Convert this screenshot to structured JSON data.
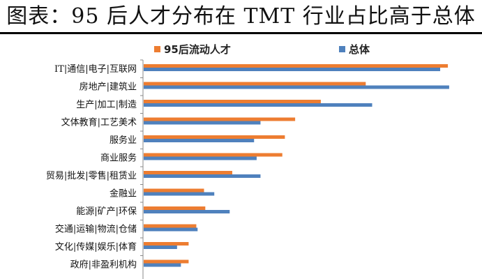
{
  "page": {
    "title": "图表：95 后人才分布在 TMT 行业占比高于总体"
  },
  "chart_data": {
    "type": "bar",
    "orientation": "horizontal",
    "grid": false,
    "legend_position": "top",
    "categories": [
      "IT|通信|电子|互联网",
      "房地产|建筑业",
      "生产|加工|制造",
      "文体教育|工艺美术",
      "服务业",
      "商业服务",
      "贸易|批发|零售|租赁业",
      "金融业",
      "能源|矿产|环保",
      "交通|运输|物流|仓储",
      "文化|传媒|娱乐|体育",
      "政府|非盈利机构"
    ],
    "series": [
      {
        "name": "95后流动人才",
        "color": "#ED7D31",
        "values": [
          23.7,
          17.3,
          13.8,
          11.8,
          11.0,
          10.8,
          6.9,
          4.7,
          4.8,
          4.1,
          3.5,
          3.5
        ]
      },
      {
        "name": "总体",
        "color": "#4F81BD",
        "values": [
          23.1,
          23.8,
          17.8,
          9.1,
          8.6,
          8.8,
          9.1,
          5.5,
          6.7,
          4.2,
          2.6,
          2.9
        ]
      }
    ],
    "xlim": [
      0,
      25
    ]
  }
}
